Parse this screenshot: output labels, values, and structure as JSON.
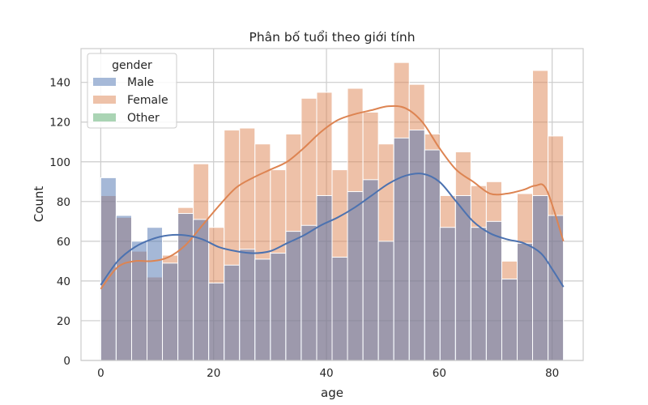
{
  "chart_data": {
    "type": "bar",
    "title": "Phân bố tuổi theo giới tính",
    "xlabel": "age",
    "ylabel": "Count",
    "xlim": [
      -3.5,
      85.5
    ],
    "ylim": [
      0,
      157
    ],
    "x_ticks": [
      0,
      20,
      40,
      60,
      80
    ],
    "y_ticks": [
      0,
      20,
      40,
      60,
      80,
      100,
      120,
      140
    ],
    "grid": true,
    "legend": {
      "title": "gender",
      "placement": "top-left"
    },
    "bin_edges": [
      0,
      2.73,
      5.47,
      8.2,
      10.93,
      13.67,
      16.4,
      19.13,
      21.87,
      24.6,
      27.33,
      30.07,
      32.8,
      35.53,
      38.27,
      41,
      43.73,
      46.47,
      49.2,
      51.93,
      54.67,
      57.4,
      60.13,
      62.87,
      65.6,
      68.33,
      71.07,
      73.8,
      76.53,
      79.27,
      82
    ],
    "series": [
      {
        "name": "Male",
        "color": "#4c72b0",
        "values": [
          92,
          73,
          60,
          67,
          49,
          74,
          71,
          39,
          48,
          56,
          51,
          54,
          65,
          68,
          83,
          52,
          85,
          91,
          60,
          112,
          116,
          106,
          67,
          83,
          67,
          70,
          41,
          59,
          83,
          73
        ],
        "kde_x": [
          0,
          3,
          6,
          9,
          12,
          15,
          18,
          21,
          24,
          27,
          30,
          33,
          36,
          39,
          42,
          45,
          48,
          51,
          54,
          57,
          60,
          63,
          66,
          69,
          72,
          75,
          78,
          80,
          82
        ],
        "kde_y": [
          38,
          50,
          57,
          61,
          63,
          63,
          61,
          57,
          55,
          54,
          55,
          59,
          63,
          68,
          72,
          77,
          83,
          89,
          93,
          94,
          90,
          80,
          70,
          64,
          61,
          59,
          54,
          46,
          37
        ]
      },
      {
        "name": "Female",
        "color": "#dd8452",
        "values": [
          83,
          72,
          55,
          42,
          53,
          77,
          99,
          67,
          116,
          117,
          109,
          96,
          114,
          132,
          135,
          96,
          137,
          125,
          109,
          150,
          139,
          114,
          83,
          105,
          88,
          90,
          50,
          84,
          146,
          113
        ],
        "kde_x": [
          0,
          3,
          6,
          9,
          12,
          15,
          18,
          21,
          24,
          27,
          30,
          33,
          36,
          39,
          42,
          45,
          48,
          51,
          54,
          57,
          60,
          63,
          66,
          69,
          72,
          75,
          77,
          79,
          82
        ],
        "kde_y": [
          36,
          47,
          50,
          50,
          52,
          58,
          68,
          78,
          87,
          92,
          96,
          100,
          107,
          115,
          121,
          124,
          126,
          128,
          127,
          120,
          107,
          96,
          90,
          84,
          84,
          86,
          88,
          86,
          60
        ]
      },
      {
        "name": "Other",
        "color": "#55a868",
        "values": []
      }
    ]
  }
}
